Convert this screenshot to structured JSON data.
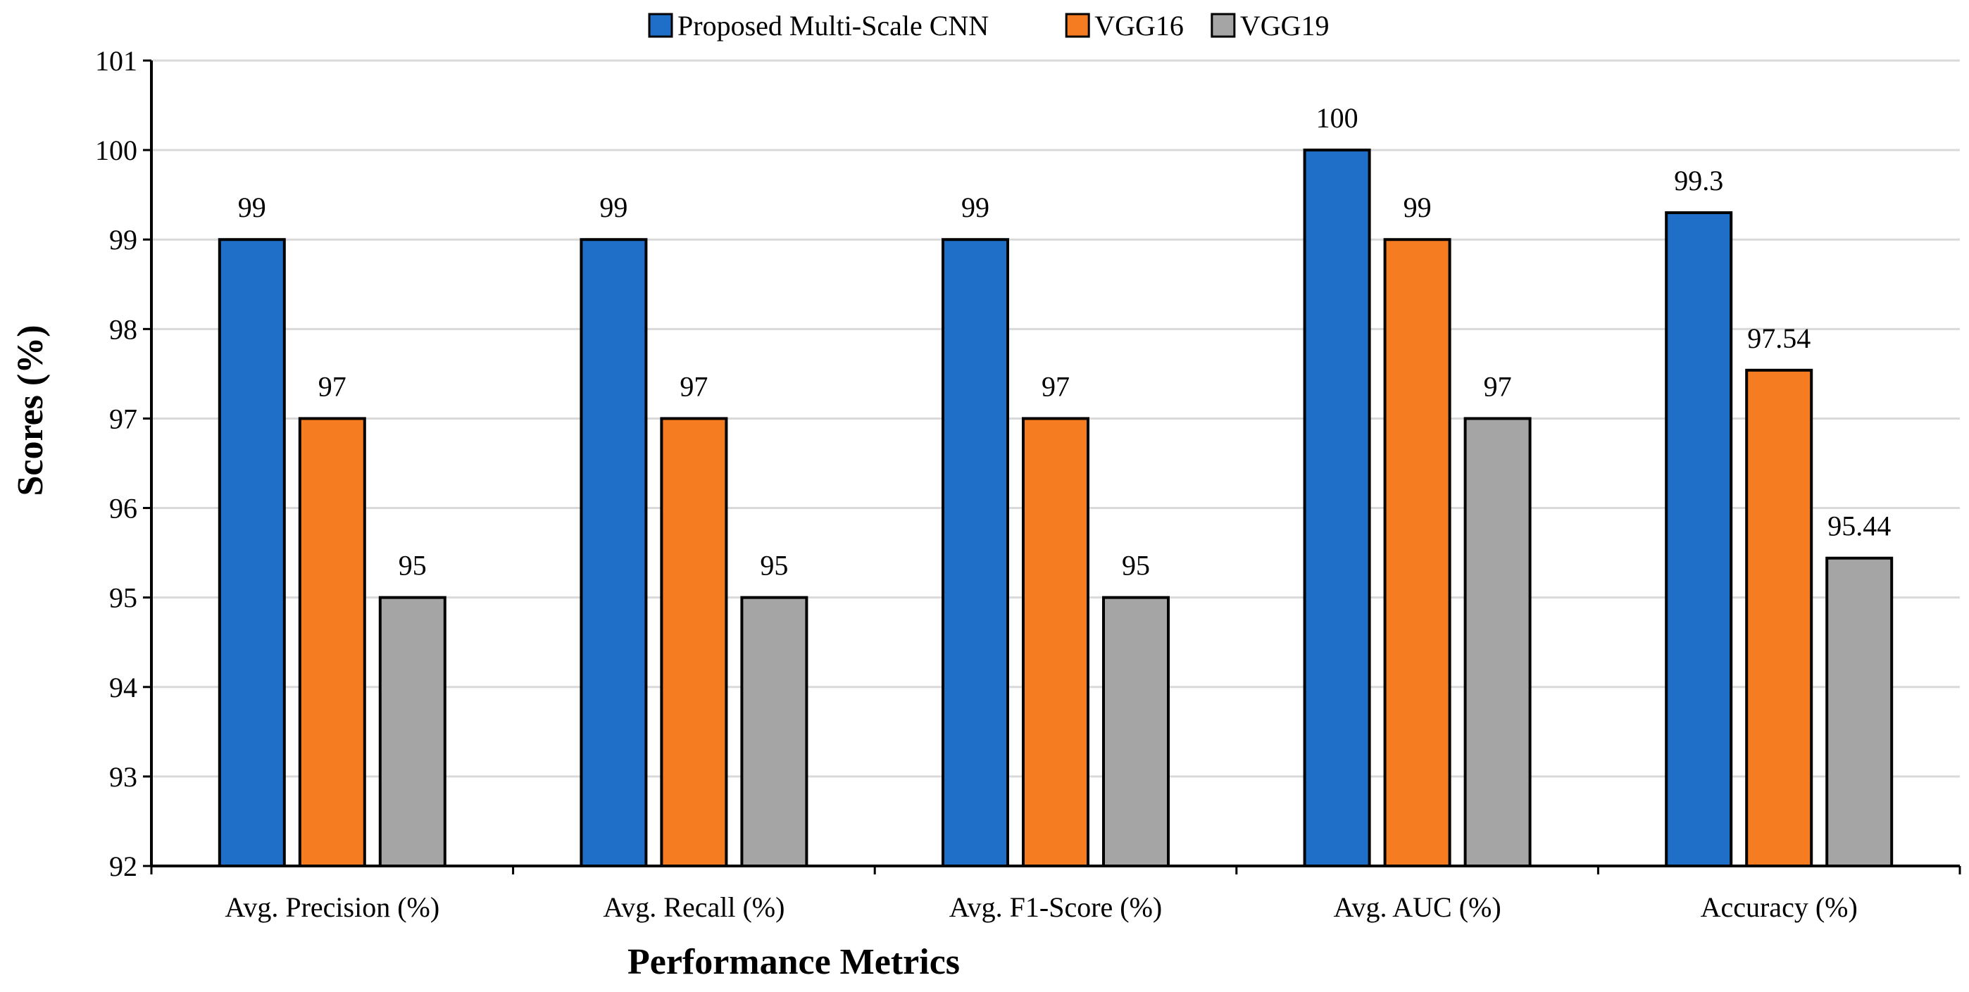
{
  "chart_data": {
    "type": "bar",
    "title": "",
    "xlabel": "Performance Metrics",
    "ylabel": "Scores (%)",
    "ylim": [
      92,
      101
    ],
    "yticks": [
      92,
      93,
      94,
      95,
      96,
      97,
      98,
      99,
      100,
      101
    ],
    "grid": true,
    "legend_position": "top-center",
    "categories": [
      "Avg. Precision (%)",
      "Avg. Recall (%)",
      "Avg. F1-Score (%)",
      "Avg. AUC (%)",
      "Accuracy (%)"
    ],
    "series": [
      {
        "name": "Proposed Multi-Scale CNN",
        "color": "#1F6FC9",
        "values": [
          99,
          99,
          99,
          100,
          99.3
        ],
        "labels": [
          "99",
          "99",
          "99",
          "100",
          "99.3"
        ]
      },
      {
        "name": "VGG16",
        "color": "#F57C20",
        "values": [
          97,
          97,
          97,
          99,
          97.54
        ],
        "labels": [
          "97",
          "97",
          "97",
          "99",
          "97.54"
        ]
      },
      {
        "name": "VGG19",
        "color": "#A5A5A5",
        "values": [
          95,
          95,
          95,
          97,
          95.44
        ],
        "labels": [
          "95",
          "95",
          "95",
          "97",
          "95.44"
        ]
      }
    ]
  }
}
